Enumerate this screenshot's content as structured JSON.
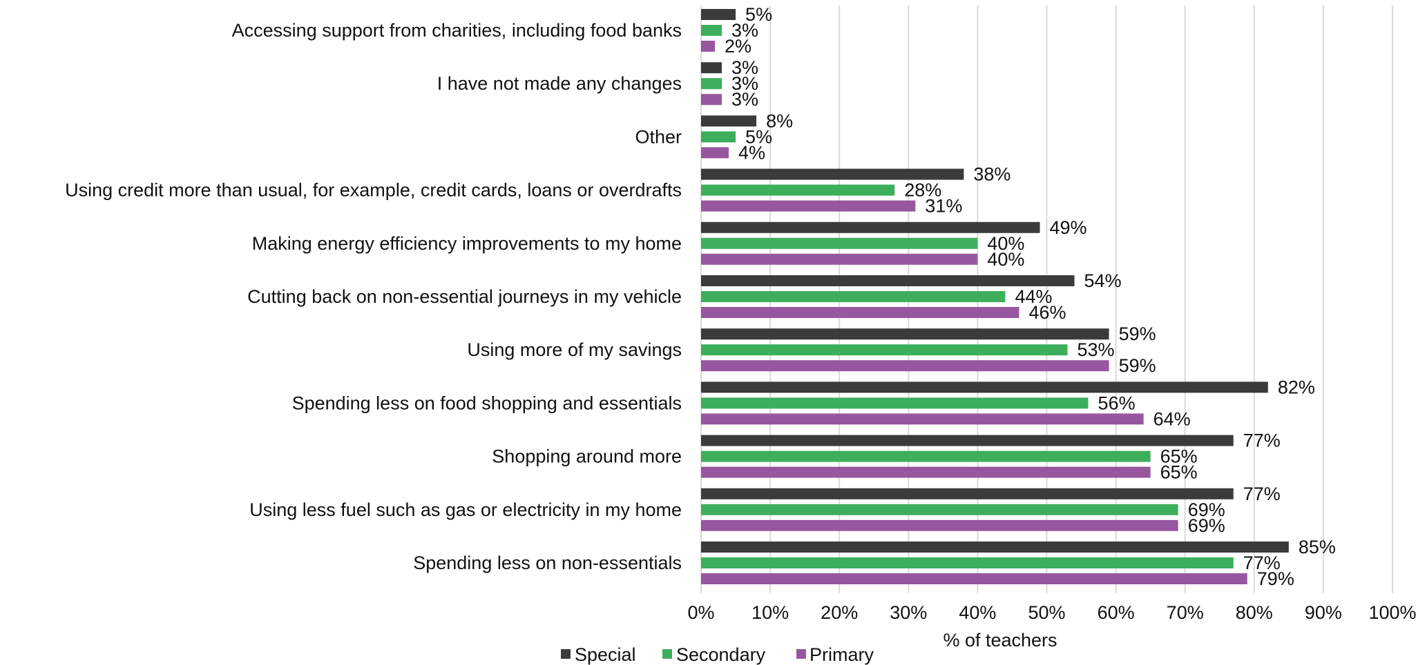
{
  "chart_data": {
    "type": "bar",
    "orientation": "horizontal",
    "categories": [
      "Accessing support from charities, including food banks",
      "I have not made any changes",
      "Other",
      "Using credit more than usual, for example, credit cards, loans or overdrafts",
      "Making energy efficiency improvements to my home",
      "Cutting back on non-essential journeys in my vehicle",
      "Using more of my savings",
      "Spending less on food shopping and essentials",
      "Shopping around more",
      "Using less fuel such as gas or electricity in my home",
      "Spending less on non-essentials"
    ],
    "series": [
      {
        "name": "Special",
        "color": "#3b3b3b",
        "values": [
          5,
          3,
          8,
          38,
          49,
          54,
          59,
          82,
          77,
          77,
          85
        ]
      },
      {
        "name": "Secondary",
        "color": "#3daf5c",
        "values": [
          3,
          3,
          5,
          28,
          40,
          44,
          53,
          56,
          65,
          69,
          77
        ]
      },
      {
        "name": "Primary",
        "color": "#97579f",
        "values": [
          2,
          3,
          4,
          31,
          40,
          46,
          59,
          64,
          65,
          69,
          79
        ]
      }
    ],
    "value_labels": [
      [
        "5%",
        "3%",
        "8%",
        "38%",
        "49%",
        "54%",
        "59%",
        "82%",
        "77%",
        "77%",
        "85%"
      ],
      [
        "3%",
        "3%",
        "5%",
        "28%",
        "40%",
        "44%",
        "53%",
        "56%",
        "65%",
        "69%",
        "77%"
      ],
      [
        "2%",
        "3%",
        "4%",
        "31%",
        "40%",
        "46%",
        "59%",
        "64%",
        "65%",
        "69%",
        "79%"
      ]
    ],
    "xlim": [
      0,
      100
    ],
    "xticks": [
      "0%",
      "10%",
      "20%",
      "30%",
      "40%",
      "50%",
      "60%",
      "70%",
      "80%",
      "90%",
      "100%"
    ],
    "xlabel": "% of teachers",
    "ylabel": "",
    "title": "",
    "grid": "vertical",
    "legend": {
      "position": "bottom",
      "entries": [
        "Special",
        "Secondary",
        "Primary"
      ]
    }
  }
}
